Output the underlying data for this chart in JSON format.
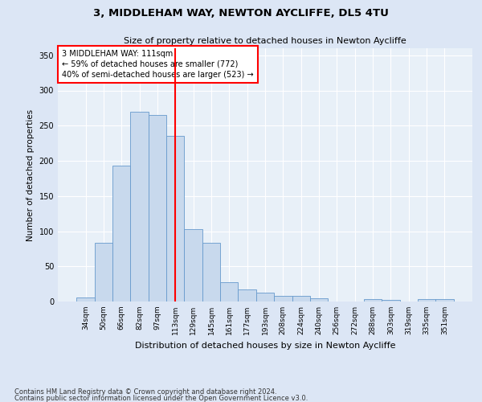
{
  "title1": "3, MIDDLEHAM WAY, NEWTON AYCLIFFE, DL5 4TU",
  "title2": "Size of property relative to detached houses in Newton Aycliffe",
  "xlabel": "Distribution of detached houses by size in Newton Aycliffe",
  "ylabel": "Number of detached properties",
  "categories": [
    "34sqm",
    "50sqm",
    "66sqm",
    "82sqm",
    "97sqm",
    "113sqm",
    "129sqm",
    "145sqm",
    "161sqm",
    "177sqm",
    "193sqm",
    "208sqm",
    "224sqm",
    "240sqm",
    "256sqm",
    "272sqm",
    "288sqm",
    "303sqm",
    "319sqm",
    "335sqm",
    "351sqm"
  ],
  "values": [
    6,
    83,
    193,
    270,
    265,
    235,
    103,
    83,
    27,
    17,
    13,
    8,
    8,
    5,
    0,
    0,
    3,
    2,
    0,
    3,
    3
  ],
  "bar_color": "#c8d9ed",
  "bar_edge_color": "#6699cc",
  "vline_x": 5,
  "annotation_line1": "3 MIDDLEHAM WAY: 111sqm",
  "annotation_line2": "← 59% of detached houses are smaller (772)",
  "annotation_line3": "40% of semi-detached houses are larger (523) →",
  "ylim": [
    0,
    360
  ],
  "yticks": [
    0,
    50,
    100,
    150,
    200,
    250,
    300,
    350
  ],
  "footer1": "Contains HM Land Registry data © Crown copyright and database right 2024.",
  "footer2": "Contains public sector information licensed under the Open Government Licence v3.0.",
  "background_color": "#dce6f5",
  "plot_background": "#e8f0f8"
}
